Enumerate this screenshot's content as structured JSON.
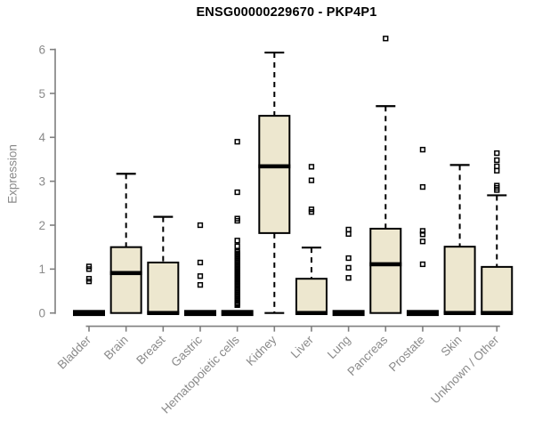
{
  "chart_data": {
    "type": "boxplot",
    "title": "ENSG00000229670 - PKP4P1",
    "ylabel": "Expression",
    "xlabel": "",
    "ylim": [
      0,
      6.4
    ],
    "yticks": [
      0,
      1,
      2,
      3,
      4,
      5,
      6
    ],
    "grid": "off",
    "legend": "none",
    "style": {
      "box_fill": "#EDE7CF",
      "box_line": "#000000",
      "axis_color": "#7f7f7f",
      "tick_label_color": "#8a8a8a",
      "title_color": "#000000",
      "background": "#ffffff"
    },
    "categories": [
      "Bladder",
      "Brain",
      "Breast",
      "Gastric",
      "Hematopoietic cells",
      "Kidney",
      "Liver",
      "Lung",
      "Pancreas",
      "Prostate",
      "Skin",
      "Unknown / Other"
    ],
    "series": [
      {
        "name": "Bladder",
        "q1": 0,
        "median": 0,
        "q3": 0,
        "whisker_low": 0,
        "whisker_high": 0,
        "outliers": [
          0.72,
          0.78,
          1.0,
          1.06
        ]
      },
      {
        "name": "Brain",
        "q1": 0,
        "median": 0.91,
        "q3": 1.5,
        "whisker_low": 0,
        "whisker_high": 3.17,
        "outliers": []
      },
      {
        "name": "Breast",
        "q1": 0,
        "median": 0,
        "q3": 1.15,
        "whisker_low": 0,
        "whisker_high": 2.19,
        "outliers": []
      },
      {
        "name": "Gastric",
        "q1": 0,
        "median": 0,
        "q3": 0,
        "whisker_low": 0,
        "whisker_high": 0,
        "outliers": [
          0.64,
          0.84,
          1.15,
          2.0
        ]
      },
      {
        "name": "Hematopoietic cells",
        "q1": 0,
        "median": 0,
        "q3": 0,
        "whisker_low": 0,
        "whisker_high": 0,
        "outliers": [
          0.18,
          0.21,
          0.24,
          0.28,
          0.31,
          0.35,
          0.38,
          0.42,
          0.45,
          0.49,
          0.52,
          0.56,
          0.59,
          0.63,
          0.66,
          0.7,
          0.73,
          0.77,
          0.8,
          0.84,
          0.87,
          0.91,
          0.94,
          0.98,
          1.01,
          1.05,
          1.08,
          1.12,
          1.15,
          1.19,
          1.22,
          1.26,
          1.29,
          1.33,
          1.36,
          1.4,
          1.52,
          1.65,
          2.1,
          2.15,
          2.75,
          3.9
        ]
      },
      {
        "name": "Kidney",
        "q1": 1.82,
        "median": 3.34,
        "q3": 4.49,
        "whisker_low": 0,
        "whisker_high": 5.93,
        "outliers": []
      },
      {
        "name": "Liver",
        "q1": 0,
        "median": 0,
        "q3": 0.78,
        "whisker_low": 0,
        "whisker_high": 1.49,
        "outliers": [
          2.3,
          2.36,
          3.02,
          3.33
        ]
      },
      {
        "name": "Lung",
        "q1": 0,
        "median": 0,
        "q3": 0,
        "whisker_low": 0,
        "whisker_high": 0,
        "outliers": [
          0.8,
          1.03,
          1.25,
          1.8,
          1.9
        ]
      },
      {
        "name": "Pancreas",
        "q1": 0,
        "median": 1.11,
        "q3": 1.92,
        "whisker_low": 0,
        "whisker_high": 4.71,
        "outliers": [
          6.25
        ]
      },
      {
        "name": "Prostate",
        "q1": 0,
        "median": 0,
        "q3": 0,
        "whisker_low": 0,
        "whisker_high": 0,
        "outliers": [
          1.11,
          1.63,
          1.79,
          1.87,
          2.87,
          3.72
        ]
      },
      {
        "name": "Skin",
        "q1": 0,
        "median": 0,
        "q3": 1.51,
        "whisker_low": 0,
        "whisker_high": 3.37,
        "outliers": []
      },
      {
        "name": "Unknown / Other",
        "q1": 0,
        "median": 0,
        "q3": 1.05,
        "whisker_low": 0,
        "whisker_high": 2.68,
        "outliers": [
          2.8,
          2.85,
          2.9,
          3.24,
          3.34,
          3.48,
          3.64
        ]
      }
    ]
  }
}
